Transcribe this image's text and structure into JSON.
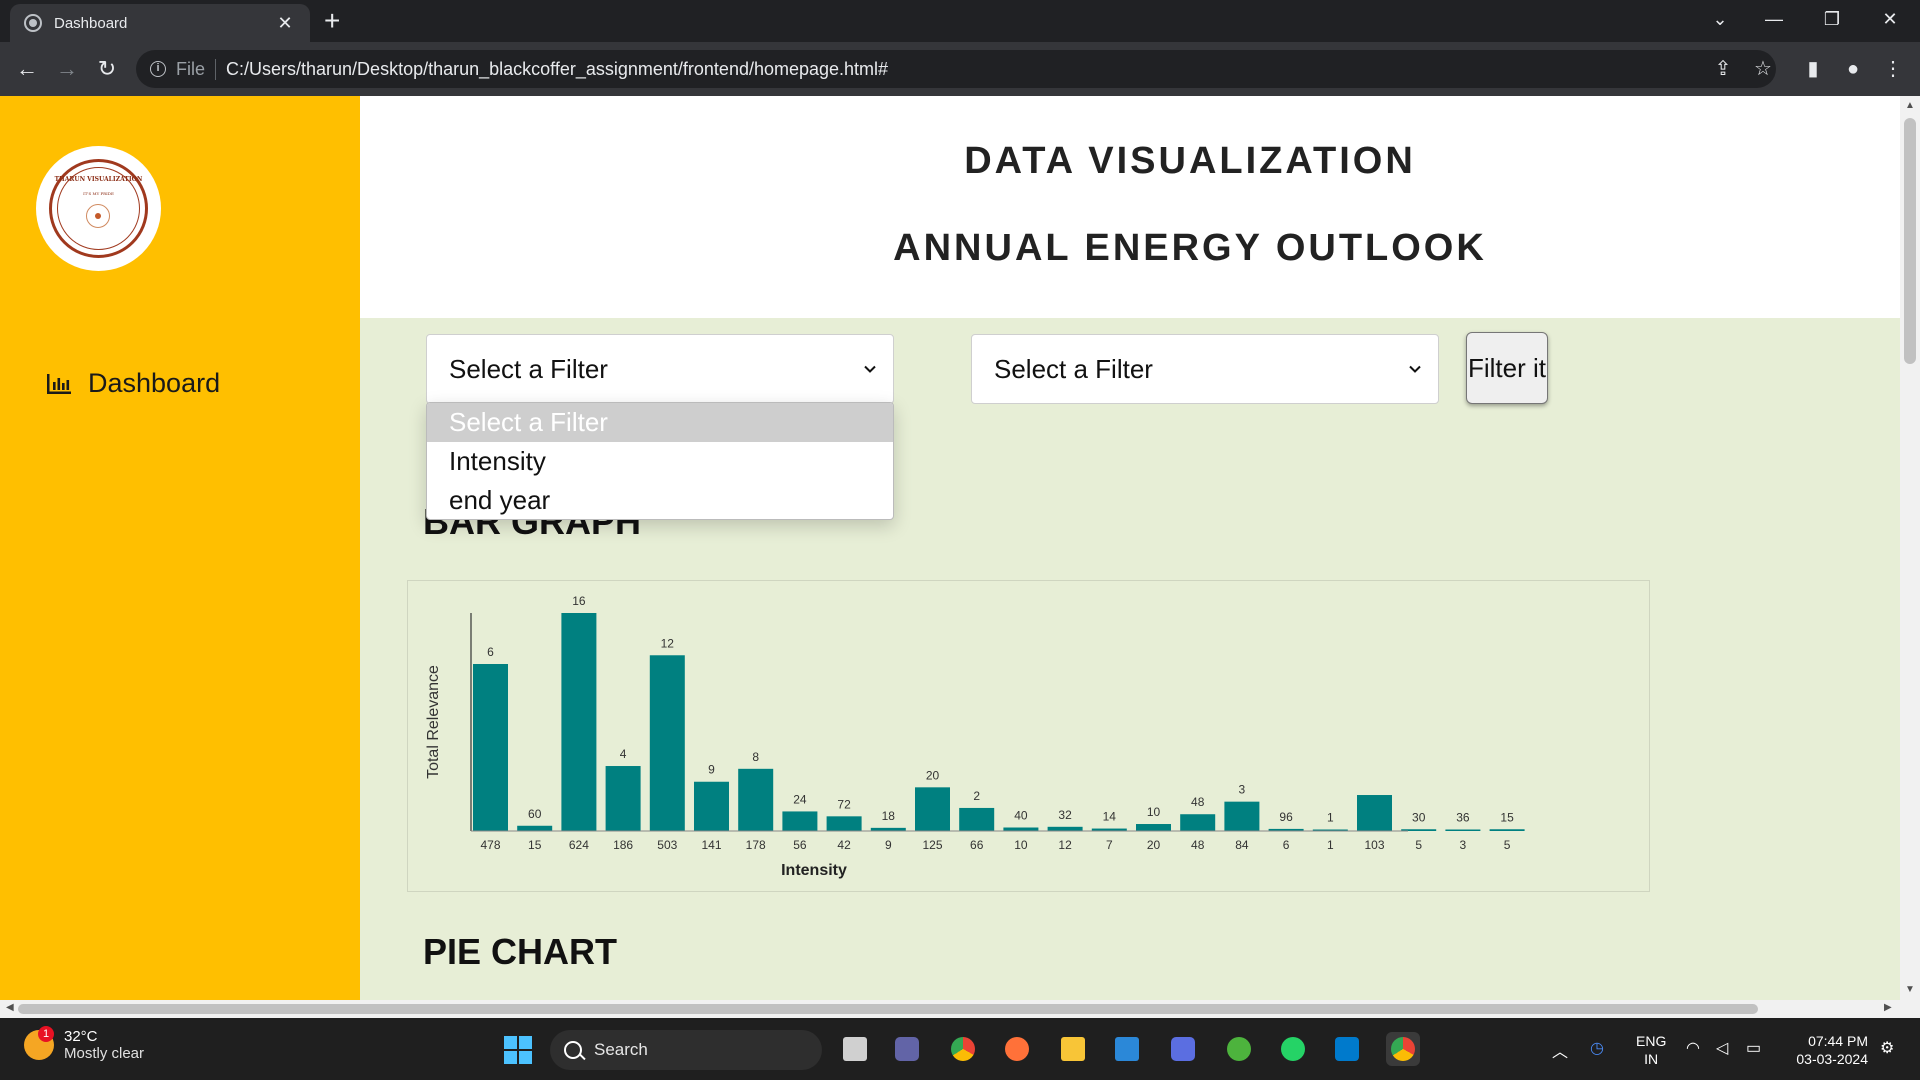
{
  "browser": {
    "tab_title": "Dashboard",
    "tab_close": "✕",
    "new_tab": "+",
    "address_label": "File",
    "url": "C:/Users/tharun/Desktop/tharun_blackcoffer_assignment/frontend/homepage.html#"
  },
  "sidebar": {
    "logo_text": "THARUN VISUALIZATION",
    "logo_subtext": "IT'S MY PRIDE",
    "nav_dashboard": "Dashboard"
  },
  "header": {
    "title": "DATA VISUALIZATION",
    "subtitle": "ANNUAL ENERGY OUTLOOK"
  },
  "filters": {
    "select1_value": "Select a Filter",
    "select2_value": "Select a Filter",
    "button_label": "Filter it",
    "options": [
      "Select a Filter",
      "Intensity",
      "end year"
    ]
  },
  "sections": {
    "bar_heading": "BAR GRAPH",
    "pie_heading": "PIE CHART"
  },
  "chart_data": {
    "type": "bar",
    "title": "",
    "xlabel": "Intensity",
    "ylabel": "Total Relevance",
    "bar_color": "#008080",
    "categories": [
      "478",
      "15",
      "624",
      "186",
      "503",
      "141",
      "178",
      "56",
      "42",
      "9",
      "125",
      "66",
      "10",
      "12",
      "7",
      "20",
      "48",
      "84",
      "6",
      "1",
      "103",
      "5",
      "3",
      "5"
    ],
    "values": [
      478,
      15,
      624,
      186,
      503,
      141,
      178,
      56,
      42,
      9,
      125,
      66,
      10,
      12,
      7,
      20,
      48,
      84,
      6,
      1,
      103,
      5,
      3,
      5
    ],
    "labels": [
      "6",
      "60",
      "16",
      "4",
      "12",
      "9",
      "8",
      "24",
      "72",
      "18",
      "20",
      "2",
      "40",
      "32",
      "14",
      "10",
      "48",
      "3",
      "96",
      "1",
      "",
      "30",
      "36",
      "15"
    ],
    "ylim": [
      0,
      624
    ],
    "grid": false,
    "legend": "none"
  },
  "taskbar": {
    "weather_badge": "1",
    "temperature": "32°C",
    "condition": "Mostly clear",
    "search_label": "Search",
    "lang_line1": "ENG",
    "lang_line2": "IN",
    "time": "07:44 PM",
    "date": "03-03-2024"
  }
}
